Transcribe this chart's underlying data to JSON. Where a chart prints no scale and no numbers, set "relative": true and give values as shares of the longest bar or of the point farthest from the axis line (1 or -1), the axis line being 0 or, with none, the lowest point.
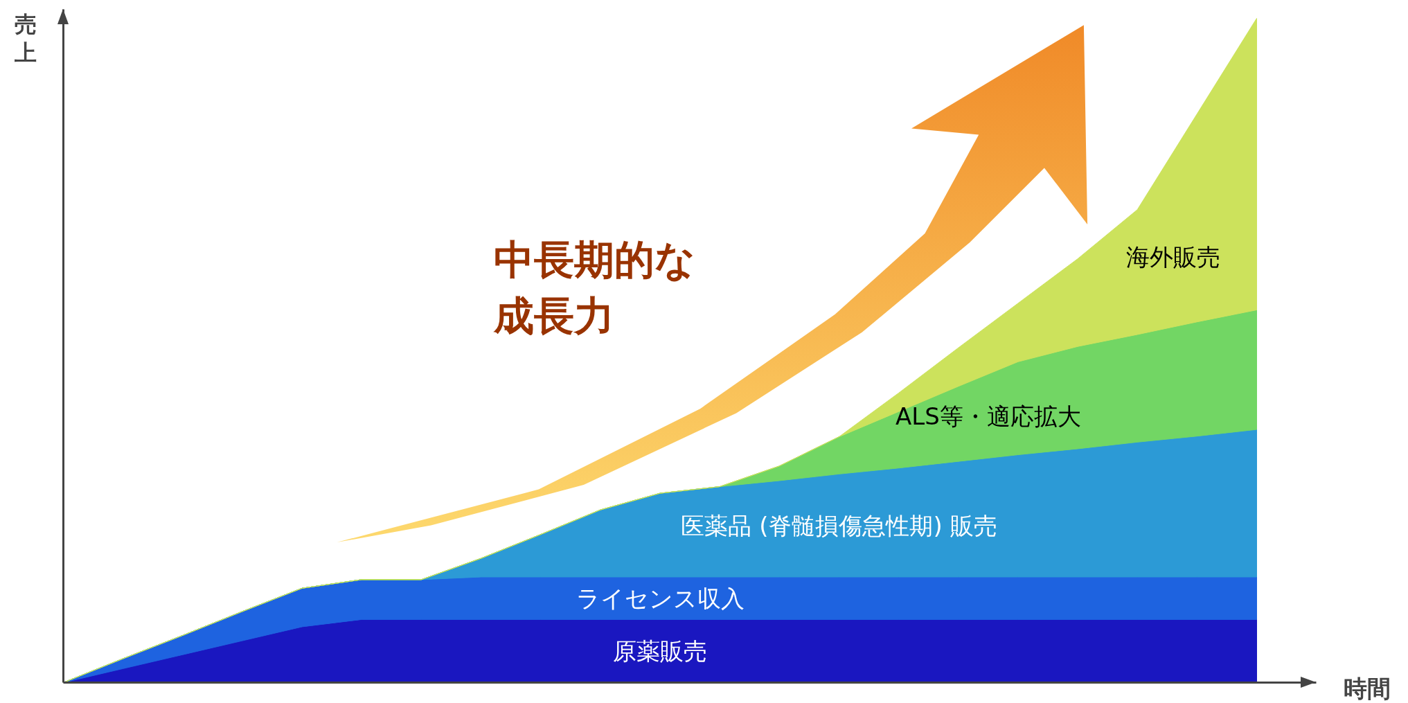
{
  "chart_data": {
    "type": "area",
    "stacked": true,
    "relative": true,
    "xlabel": "時間",
    "ylabel": "売上",
    "categories": [
      null,
      null,
      null,
      null,
      null,
      null,
      null,
      null,
      null,
      null,
      null,
      null,
      null,
      null,
      null,
      null,
      null,
      null,
      null,
      null,
      null
    ],
    "annotations": [
      "中長期的な成長力"
    ],
    "series": [
      {
        "name": "原薬販売",
        "color": "#1a17c0",
        "values": [
          0,
          0.021,
          0.042,
          0.063,
          0.084,
          0.095,
          0.095,
          0.095,
          0.095,
          0.095,
          0.095,
          0.095,
          0.095,
          0.095,
          0.095,
          0.095,
          0.095,
          0.095,
          0.095,
          0.095,
          0.095
        ]
      },
      {
        "name": "ライセンス収入",
        "color": "#1e63e0",
        "values": [
          0,
          0.015,
          0.029,
          0.044,
          0.058,
          0.06,
          0.06,
          0.064,
          0.064,
          0.064,
          0.064,
          0.064,
          0.064,
          0.064,
          0.064,
          0.064,
          0.064,
          0.064,
          0.064,
          0.064,
          0.064
        ]
      },
      {
        "name": "医薬品 (脊髄損傷急性期) 販売",
        "color": "#2c9ad6",
        "values": [
          0,
          0,
          0,
          0,
          0,
          0,
          0,
          0.028,
          0.064,
          0.101,
          0.126,
          0.136,
          0.145,
          0.155,
          0.164,
          0.174,
          0.184,
          0.193,
          0.203,
          0.212,
          0.222
        ]
      },
      {
        "name": "ALS等・適応拡大",
        "color": "#72d664",
        "values": [
          0,
          0,
          0,
          0,
          0,
          0,
          0,
          0,
          0,
          0,
          0,
          0,
          0.022,
          0.056,
          0.085,
          0.113,
          0.14,
          0.154,
          0.162,
          0.172,
          0.18
        ]
      },
      {
        "name": "海外販売",
        "color": "#cce25c",
        "values": [
          0,
          0,
          0,
          0,
          0,
          0,
          0,
          0,
          0,
          0,
          0,
          0,
          0,
          0,
          0.028,
          0.058,
          0.088,
          0.132,
          0.188,
          0.313,
          0.439
        ]
      }
    ]
  }
}
